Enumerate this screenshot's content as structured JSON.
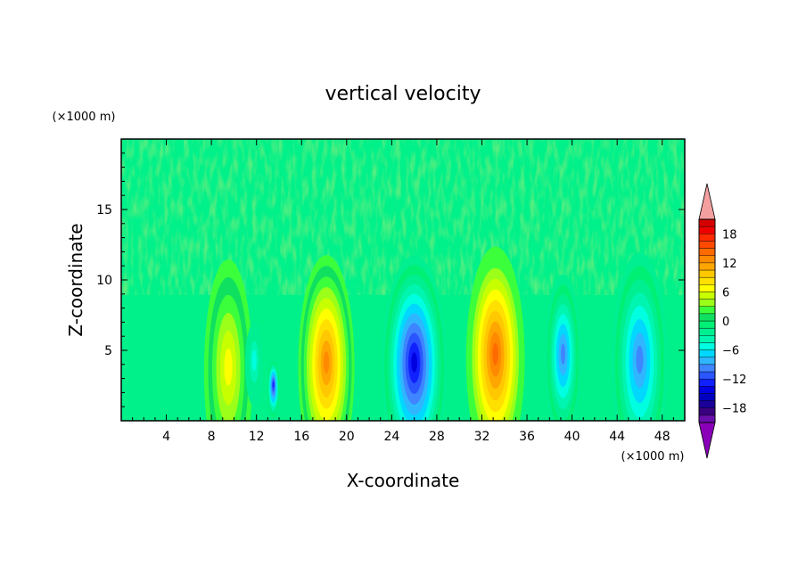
{
  "chart_data": {
    "type": "heatmap",
    "title": "vertical velocity",
    "xlabel": "X-coordinate",
    "ylabel": "Z-coordinate",
    "x_unit": "(×1000 m)",
    "y_unit": "(×1000 m)",
    "xlim": [
      0,
      50
    ],
    "ylim": [
      0,
      20
    ],
    "xticks": [
      4,
      8,
      12,
      16,
      20,
      24,
      28,
      32,
      36,
      40,
      44,
      48
    ],
    "yticks": [
      5,
      10,
      15
    ],
    "grid": false,
    "colorbar": {
      "placement": "right",
      "levels": [
        -21,
        -19.5,
        -18,
        -16.5,
        -15,
        -13.5,
        -12,
        -10.5,
        -9,
        -7.5,
        -6,
        -4.5,
        -3,
        -1.5,
        0,
        1.5,
        3,
        4.5,
        6,
        7.5,
        9,
        10.5,
        12,
        13.5,
        15,
        16.5,
        18,
        19.5,
        21
      ],
      "ticks": [
        -18,
        -12,
        -6,
        0,
        6,
        12,
        18
      ],
      "tick_labels": [
        "−18",
        "−12",
        "−6",
        "0",
        "6",
        "12",
        "18"
      ],
      "colors": [
        "#6a0dad",
        "#3a007f",
        "#1a0099",
        "#0000c0",
        "#0000e0",
        "#1020ff",
        "#2a55ff",
        "#3e85ff",
        "#2fb6ff",
        "#00d8ff",
        "#00ffe0",
        "#00f5b0",
        "#00ef90",
        "#00f076",
        "#10e060",
        "#3cff3c",
        "#9bff1a",
        "#c8ff00",
        "#ffff00",
        "#ffe000",
        "#ffc800",
        "#ffa600",
        "#ff8a00",
        "#ff6a00",
        "#ff4a00",
        "#ff2a00",
        "#ee0000",
        "#d40000"
      ],
      "under_color": "#8a00b8",
      "over_color": "#f4a0a0"
    },
    "features": [
      {
        "x": 9.5,
        "z": 3.5,
        "w": 4.3,
        "value": 7.5
      },
      {
        "x": 13.5,
        "z": 2.2,
        "w": 1.2,
        "value": -13
      },
      {
        "x": 11.8,
        "z": 4.0,
        "w": 1.6,
        "value": -5
      },
      {
        "x": 18.2,
        "z": 3.8,
        "w": 5.0,
        "value": 13
      },
      {
        "x": 26.0,
        "z": 3.8,
        "w": 5.8,
        "value": -15
      },
      {
        "x": 33.2,
        "z": 4.4,
        "w": 5.2,
        "value": 14
      },
      {
        "x": 39.2,
        "z": 4.4,
        "w": 3.2,
        "value": -10
      },
      {
        "x": 46.0,
        "z": 4.0,
        "w": 5.0,
        "value": -10
      }
    ]
  }
}
